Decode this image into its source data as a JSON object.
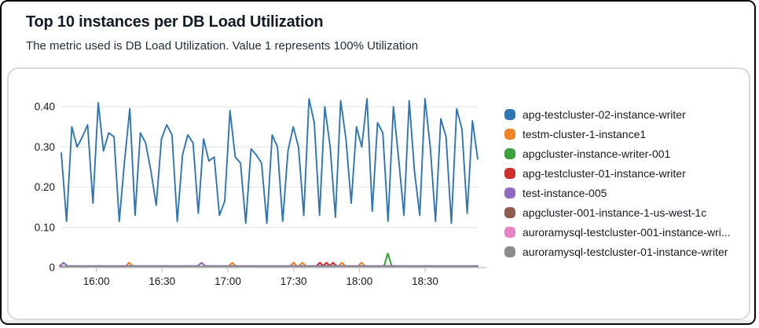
{
  "header": {
    "title": "Top 10 instances per DB Load Utilization",
    "subtitle": "The metric used is DB Load Utilization. Value 1 represents 100% Utilization"
  },
  "chart_data": {
    "type": "line",
    "title": "Top 10 instances per DB Load Utilization",
    "xlabel": "",
    "ylabel": "",
    "grid": true,
    "legend_position": "right",
    "ylim": [
      0,
      0.43
    ],
    "y_axis": {
      "ticks": [
        {
          "v": 0.4,
          "label": "0.40"
        },
        {
          "v": 0.3,
          "label": "0.30"
        },
        {
          "v": 0.2,
          "label": "0.20"
        },
        {
          "v": 0.1,
          "label": "0.10"
        },
        {
          "v": 0,
          "label": "0"
        }
      ]
    },
    "x_axis": {
      "unit": "time of day (minutes)",
      "range_minutes": [
        944,
        1134
      ],
      "ticks": [
        {
          "t": 960,
          "label": "16:00"
        },
        {
          "t": 990,
          "label": "16:30"
        },
        {
          "t": 1020,
          "label": "17:00"
        },
        {
          "t": 1050,
          "label": "17:30"
        },
        {
          "t": 1080,
          "label": "18:00"
        },
        {
          "t": 1110,
          "label": "18:30"
        }
      ]
    },
    "series": [
      {
        "name": "apg-testcluster-02-instance-writer",
        "color": "#2e75b4",
        "kind": "dense",
        "values": [
          0.285,
          0.115,
          0.35,
          0.3,
          0.325,
          0.355,
          0.16,
          0.41,
          0.29,
          0.335,
          0.325,
          0.115,
          0.265,
          0.395,
          0.13,
          0.335,
          0.31,
          0.24,
          0.155,
          0.32,
          0.355,
          0.33,
          0.115,
          0.28,
          0.33,
          0.31,
          0.135,
          0.32,
          0.265,
          0.275,
          0.13,
          0.165,
          0.39,
          0.275,
          0.26,
          0.11,
          0.295,
          0.28,
          0.26,
          0.11,
          0.33,
          0.3,
          0.115,
          0.29,
          0.35,
          0.3,
          0.13,
          0.42,
          0.36,
          0.13,
          0.4,
          0.3,
          0.125,
          0.415,
          0.32,
          0.16,
          0.35,
          0.3,
          0.42,
          0.14,
          0.36,
          0.335,
          0.115,
          0.4,
          0.27,
          0.13,
          0.415,
          0.24,
          0.13,
          0.42,
          0.3,
          0.115,
          0.37,
          0.325,
          0.11,
          0.395,
          0.345,
          0.135,
          0.365,
          0.27
        ]
      },
      {
        "name": "testm-cluster-1-instance1",
        "color": "#ef8428",
        "kind": "spikes",
        "baseline": 0.003,
        "spikes": [
          {
            "t": 975,
            "v": 0.012
          },
          {
            "t": 1022,
            "v": 0.012
          },
          {
            "t": 1050,
            "v": 0.012
          },
          {
            "t": 1054,
            "v": 0.012
          },
          {
            "t": 1072,
            "v": 0.012
          },
          {
            "t": 1081,
            "v": 0.012
          }
        ]
      },
      {
        "name": "apgcluster-instance-writer-001",
        "color": "#3ba13a",
        "kind": "spikes",
        "baseline": 0.003,
        "spikes": [
          {
            "t": 1093,
            "v": 0.035
          }
        ]
      },
      {
        "name": "apg-testcluster-01-instance-writer",
        "color": "#cc2f2e",
        "kind": "spikes",
        "baseline": 0.003,
        "spikes": [
          {
            "t": 1062,
            "v": 0.012
          },
          {
            "t": 1065,
            "v": 0.012
          },
          {
            "t": 1068,
            "v": 0.012
          }
        ]
      },
      {
        "name": "test-instance-005",
        "color": "#8f6bbf",
        "kind": "spikes",
        "baseline": 0.004,
        "spikes": [
          {
            "t": 945,
            "v": 0.012
          },
          {
            "t": 1008,
            "v": 0.012
          }
        ]
      },
      {
        "name": "apgcluster-001-instance-1-us-west-1c",
        "color": "#8f5c50",
        "kind": "spikes",
        "baseline": 0.003,
        "spikes": []
      },
      {
        "name": "auroramysql-testcluster-001-instance-wri...",
        "color": "#e583c6",
        "kind": "spikes",
        "baseline": 0.003,
        "spikes": []
      },
      {
        "name": "auroramysql-testcluster-01-instance-writer",
        "color": "#8c8c8c",
        "kind": "spikes",
        "baseline": 0.003,
        "spikes": []
      }
    ]
  }
}
